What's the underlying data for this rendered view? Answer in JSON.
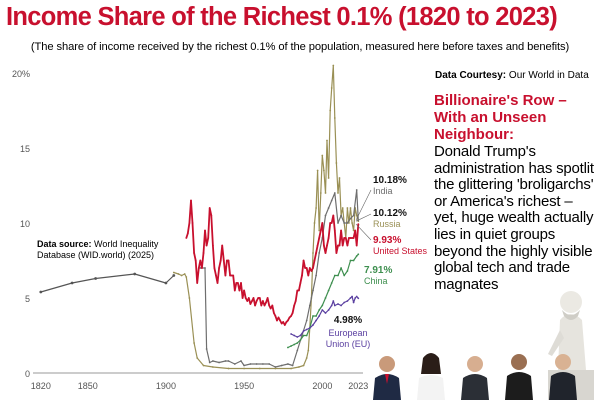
{
  "header": {
    "title": "Income Share of the Richest 0.1% (1820 to 2023)",
    "subtitle": "(The share of income received by the richest 0.1% of the population, measured here before taxes and benefits)"
  },
  "courtesy": {
    "label": "Data Courtesy:",
    "value": "Our World in Data"
  },
  "source": {
    "label": "Data source:",
    "value": "World Inequality Database (WID.world) (2025)"
  },
  "story": {
    "headline": "Billionaire's Row – With an Unseen Neighbour:",
    "body": "Donald Trump's administration has spotlit the glittering 'broligarchs' or America's richest – yet, huge wealth actually lies in quiet groups beyond the highly visible global tech and trade magnates"
  },
  "colors": {
    "title": "#c8102e",
    "headline": "#c8102e",
    "india": "#6e6e6e",
    "russia": "#9a9055",
    "united_states": "#c8102e",
    "china": "#3e8f4f",
    "eu": "#5a3fa0",
    "axis": "#999999"
  },
  "chart_data": {
    "type": "line",
    "title": "Income Share of the Richest 0.1% (1820 to 2023)",
    "ylim": [
      0,
      20
    ],
    "xlim": [
      1815,
      2026
    ],
    "xticks": [
      1820,
      1850,
      1900,
      1950,
      2000,
      2023
    ],
    "yticks": [
      {
        "value": 0,
        "label": "0"
      },
      {
        "value": 5,
        "label": "5"
      },
      {
        "value": 10,
        "label": "10"
      },
      {
        "value": 15,
        "label": "15"
      },
      {
        "value": 20,
        "label": "20%"
      }
    ],
    "grid": false,
    "series": [
      {
        "name": "India",
        "key": "india",
        "end_label": "10.18%",
        "points": [
          [
            1922,
            7.0
          ],
          [
            1925,
            7.0
          ],
          [
            1926,
            1.6
          ],
          [
            1928,
            0.7
          ],
          [
            1930,
            0.8
          ],
          [
            1934,
            0.7
          ],
          [
            1938,
            0.8
          ],
          [
            1940,
            0.8
          ],
          [
            1944,
            0.6
          ],
          [
            1948,
            0.8
          ],
          [
            1950,
            0.5
          ],
          [
            1954,
            0.6
          ],
          [
            1958,
            0.6
          ],
          [
            1962,
            0.6
          ],
          [
            1966,
            0.6
          ],
          [
            1970,
            0.4
          ],
          [
            1974,
            0.5
          ],
          [
            1978,
            0.6
          ],
          [
            1981,
            0.5
          ],
          [
            1984,
            1.5
          ],
          [
            1987,
            2.5
          ],
          [
            1990,
            3.5
          ],
          [
            1992,
            4.5
          ],
          [
            1994,
            5.5
          ],
          [
            1996,
            6.5
          ],
          [
            1998,
            8.0
          ],
          [
            2000,
            9.0
          ],
          [
            2002,
            10.5
          ],
          [
            2004,
            11.0
          ],
          [
            2006,
            11.5
          ],
          [
            2008,
            12.0
          ],
          [
            2010,
            10.0
          ],
          [
            2012,
            10.5
          ],
          [
            2014,
            10.0
          ],
          [
            2016,
            10.0
          ],
          [
            2018,
            10.3
          ],
          [
            2020,
            10.5
          ],
          [
            2022,
            12.2
          ],
          [
            2023,
            10.18
          ]
        ]
      },
      {
        "name": "Russia",
        "key": "russia",
        "end_label": "10.12%",
        "points": [
          [
            1905,
            6.7
          ],
          [
            1908,
            6.6
          ],
          [
            1910,
            6.5
          ],
          [
            1912,
            6.6
          ],
          [
            1913,
            6.4
          ],
          [
            1915,
            5.0
          ],
          [
            1918,
            2.0
          ],
          [
            1920,
            1.0
          ],
          [
            1924,
            0.5
          ],
          [
            1930,
            0.4
          ],
          [
            1940,
            0.3
          ],
          [
            1950,
            0.3
          ],
          [
            1960,
            0.3
          ],
          [
            1970,
            0.3
          ],
          [
            1980,
            0.3
          ],
          [
            1985,
            0.4
          ],
          [
            1988,
            0.5
          ],
          [
            1990,
            1.0
          ],
          [
            1991,
            1.5
          ],
          [
            1992,
            3.0
          ],
          [
            1993,
            5.0
          ],
          [
            1994,
            8.0
          ],
          [
            1995,
            10.0
          ],
          [
            1996,
            11.0
          ],
          [
            1997,
            13.5
          ],
          [
            1998,
            9.5
          ],
          [
            1999,
            12.0
          ],
          [
            2000,
            14.5
          ],
          [
            2001,
            13.5
          ],
          [
            2002,
            12.0
          ],
          [
            2003,
            15.5
          ],
          [
            2004,
            13.0
          ],
          [
            2005,
            17.5
          ],
          [
            2006,
            19.0
          ],
          [
            2007,
            20.5
          ],
          [
            2008,
            17.0
          ],
          [
            2009,
            14.0
          ],
          [
            2010,
            12.0
          ],
          [
            2011,
            13.0
          ],
          [
            2012,
            10.5
          ],
          [
            2013,
            11.0
          ],
          [
            2014,
            10.0
          ],
          [
            2015,
            9.0
          ],
          [
            2016,
            11.0
          ],
          [
            2017,
            10.0
          ],
          [
            2018,
            11.0
          ],
          [
            2019,
            10.0
          ],
          [
            2020,
            9.5
          ],
          [
            2021,
            11.0
          ],
          [
            2022,
            10.5
          ],
          [
            2023,
            10.12
          ]
        ]
      },
      {
        "name": "United States",
        "key": "united_states",
        "end_label": "9.93%",
        "points": [
          [
            1913,
            9.0
          ],
          [
            1914,
            9.3
          ],
          [
            1915,
            10.0
          ],
          [
            1916,
            11.5
          ],
          [
            1917,
            10.0
          ],
          [
            1918,
            8.0
          ],
          [
            1919,
            7.5
          ],
          [
            1920,
            6.0
          ],
          [
            1921,
            7.0
          ],
          [
            1922,
            7.5
          ],
          [
            1923,
            7.0
          ],
          [
            1924,
            8.0
          ],
          [
            1925,
            9.5
          ],
          [
            1926,
            8.5
          ],
          [
            1927,
            9.0
          ],
          [
            1928,
            11.0
          ],
          [
            1929,
            10.5
          ],
          [
            1930,
            8.5
          ],
          [
            1931,
            7.0
          ],
          [
            1932,
            6.5
          ],
          [
            1933,
            6.0
          ],
          [
            1934,
            7.0
          ],
          [
            1935,
            7.5
          ],
          [
            1936,
            8.5
          ],
          [
            1937,
            7.5
          ],
          [
            1938,
            6.5
          ],
          [
            1939,
            7.5
          ],
          [
            1940,
            7.5
          ],
          [
            1941,
            6.5
          ],
          [
            1942,
            6.5
          ],
          [
            1943,
            6.5
          ],
          [
            1944,
            5.5
          ],
          [
            1945,
            6.0
          ],
          [
            1946,
            6.0
          ],
          [
            1947,
            5.5
          ],
          [
            1948,
            6.0
          ],
          [
            1949,
            5.0
          ],
          [
            1950,
            5.5
          ],
          [
            1951,
            5.0
          ],
          [
            1952,
            4.8
          ],
          [
            1953,
            5.0
          ],
          [
            1954,
            4.6
          ],
          [
            1955,
            4.8
          ],
          [
            1956,
            5.0
          ],
          [
            1957,
            4.5
          ],
          [
            1958,
            4.8
          ],
          [
            1959,
            5.0
          ],
          [
            1960,
            5.0
          ],
          [
            1961,
            4.5
          ],
          [
            1962,
            4.8
          ],
          [
            1963,
            4.5
          ],
          [
            1964,
            4.7
          ],
          [
            1965,
            5.0
          ],
          [
            1966,
            4.5
          ],
          [
            1967,
            4.3
          ],
          [
            1968,
            4.5
          ],
          [
            1969,
            4.0
          ],
          [
            1970,
            3.8
          ],
          [
            1971,
            3.5
          ],
          [
            1972,
            3.7
          ],
          [
            1973,
            3.5
          ],
          [
            1974,
            3.3
          ],
          [
            1975,
            3.4
          ],
          [
            1976,
            3.2
          ],
          [
            1977,
            3.4
          ],
          [
            1978,
            3.5
          ],
          [
            1979,
            3.7
          ],
          [
            1980,
            3.8
          ],
          [
            1981,
            4.0
          ],
          [
            1982,
            4.5
          ],
          [
            1983,
            4.8
          ],
          [
            1984,
            5.5
          ],
          [
            1985,
            5.5
          ],
          [
            1986,
            6.0
          ],
          [
            1987,
            6.5
          ],
          [
            1988,
            7.5
          ],
          [
            1989,
            7.0
          ],
          [
            1990,
            7.0
          ],
          [
            1991,
            6.5
          ],
          [
            1992,
            7.0
          ],
          [
            1993,
            6.8
          ],
          [
            1994,
            7.0
          ],
          [
            1995,
            7.5
          ],
          [
            1996,
            8.0
          ],
          [
            1997,
            8.5
          ],
          [
            1998,
            9.0
          ],
          [
            1999,
            9.5
          ],
          [
            2000,
            10.0
          ],
          [
            2001,
            8.5
          ],
          [
            2002,
            8.0
          ],
          [
            2003,
            8.5
          ],
          [
            2004,
            9.0
          ],
          [
            2005,
            10.0
          ],
          [
            2006,
            10.0
          ],
          [
            2007,
            10.5
          ],
          [
            2008,
            9.5
          ],
          [
            2009,
            8.0
          ],
          [
            2010,
            8.5
          ],
          [
            2011,
            8.5
          ],
          [
            2012,
            9.5
          ],
          [
            2013,
            8.5
          ],
          [
            2014,
            9.0
          ],
          [
            2015,
            9.0
          ],
          [
            2016,
            8.5
          ],
          [
            2017,
            9.0
          ],
          [
            2018,
            9.0
          ],
          [
            2019,
            9.0
          ],
          [
            2020,
            9.0
          ],
          [
            2021,
            9.5
          ],
          [
            2022,
            8.5
          ],
          [
            2023,
            9.93
          ]
        ]
      },
      {
        "name": "China",
        "key": "china",
        "end_label": "7.91%",
        "points": [
          [
            1978,
            1.7
          ],
          [
            1980,
            1.8
          ],
          [
            1982,
            1.9
          ],
          [
            1984,
            2.0
          ],
          [
            1986,
            2.2
          ],
          [
            1988,
            2.5
          ],
          [
            1990,
            2.5
          ],
          [
            1992,
            3.0
          ],
          [
            1994,
            3.8
          ],
          [
            1996,
            3.8
          ],
          [
            1998,
            4.2
          ],
          [
            2000,
            4.5
          ],
          [
            2002,
            5.0
          ],
          [
            2004,
            5.5
          ],
          [
            2006,
            6.0
          ],
          [
            2008,
            6.5
          ],
          [
            2010,
            6.5
          ],
          [
            2012,
            7.0
          ],
          [
            2014,
            6.5
          ],
          [
            2016,
            6.8
          ],
          [
            2018,
            7.5
          ],
          [
            2020,
            7.5
          ],
          [
            2022,
            7.8
          ],
          [
            2023,
            7.91
          ]
        ]
      },
      {
        "name": "European Union (EU)",
        "key": "eu",
        "end_label": "4.98%",
        "points": [
          [
            1980,
            2.6
          ],
          [
            1982,
            2.5
          ],
          [
            1984,
            2.4
          ],
          [
            1986,
            2.5
          ],
          [
            1988,
            2.8
          ],
          [
            1990,
            2.9
          ],
          [
            1992,
            3.0
          ],
          [
            1994,
            3.2
          ],
          [
            1996,
            3.5
          ],
          [
            1998,
            3.8
          ],
          [
            2000,
            4.2
          ],
          [
            2002,
            4.0
          ],
          [
            2004,
            4.2
          ],
          [
            2006,
            4.5
          ],
          [
            2007,
            4.8
          ],
          [
            2008,
            4.5
          ],
          [
            2010,
            4.6
          ],
          [
            2012,
            4.5
          ],
          [
            2014,
            4.7
          ],
          [
            2016,
            4.8
          ],
          [
            2018,
            5.0
          ],
          [
            2019,
            5.1
          ],
          [
            2020,
            4.7
          ],
          [
            2021,
            5.0
          ],
          [
            2022,
            5.1
          ],
          [
            2023,
            4.98
          ]
        ]
      },
      {
        "name": "",
        "key": "early",
        "end_label": "",
        "points": [
          [
            1820,
            5.4
          ],
          [
            1840,
            6.0
          ],
          [
            1855,
            6.3
          ],
          [
            1880,
            6.6
          ],
          [
            1900,
            6.0
          ],
          [
            1905,
            6.5
          ]
        ]
      }
    ]
  }
}
